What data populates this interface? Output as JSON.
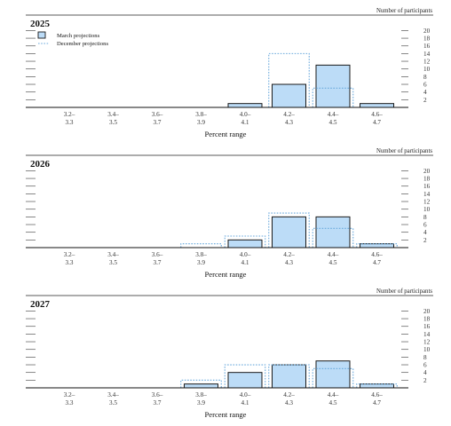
{
  "chart_data": [
    {
      "type": "bar",
      "title": "2025",
      "unit_label": "Number of participants",
      "xlabel": "Percent range",
      "categories": [
        [
          "3.2–",
          "3.3"
        ],
        [
          "3.4–",
          "3.5"
        ],
        [
          "3.6–",
          "3.7"
        ],
        [
          "3.8–",
          "3.9"
        ],
        [
          "4.0–",
          "4.1"
        ],
        [
          "4.2–",
          "4.3"
        ],
        [
          "4.4–",
          "4.5"
        ],
        [
          "4.6–",
          "4.7"
        ]
      ],
      "yticks": [
        2,
        4,
        6,
        8,
        10,
        12,
        14,
        16,
        18,
        20
      ],
      "ylim": [
        0,
        20
      ],
      "series": [
        {
          "name": "March projections",
          "style": "solid-bar",
          "values": [
            0,
            0,
            0,
            0,
            1,
            6,
            11,
            1
          ]
        },
        {
          "name": "December projections",
          "style": "dotted-outline",
          "values": [
            0,
            0,
            0,
            0,
            0,
            14,
            5,
            0
          ]
        }
      ],
      "legend": "top-left",
      "colors": {
        "bar_fill": "#bcdcf7",
        "bar_edge": "#1a1a1a",
        "dotted": "#6aa9dc"
      }
    },
    {
      "type": "bar",
      "title": "2026",
      "unit_label": "Number of participants",
      "xlabel": "Percent range",
      "categories": [
        [
          "3.2–",
          "3.3"
        ],
        [
          "3.4–",
          "3.5"
        ],
        [
          "3.6–",
          "3.7"
        ],
        [
          "3.8–",
          "3.9"
        ],
        [
          "4.0–",
          "4.1"
        ],
        [
          "4.2–",
          "4.3"
        ],
        [
          "4.4–",
          "4.5"
        ],
        [
          "4.6–",
          "4.7"
        ]
      ],
      "yticks": [
        2,
        4,
        6,
        8,
        10,
        12,
        14,
        16,
        18,
        20
      ],
      "ylim": [
        0,
        20
      ],
      "series": [
        {
          "name": "March projections",
          "style": "solid-bar",
          "values": [
            0,
            0,
            0,
            0,
            2,
            8,
            8,
            1
          ]
        },
        {
          "name": "December projections",
          "style": "dotted-outline",
          "values": [
            0,
            0,
            0,
            1,
            3,
            9,
            5,
            1
          ]
        }
      ],
      "colors": {
        "bar_fill": "#bcdcf7",
        "bar_edge": "#1a1a1a",
        "dotted": "#6aa9dc"
      }
    },
    {
      "type": "bar",
      "title": "2027",
      "unit_label": "Number of participants",
      "xlabel": "Percent range",
      "categories": [
        [
          "3.2–",
          "3.3"
        ],
        [
          "3.4–",
          "3.5"
        ],
        [
          "3.6–",
          "3.7"
        ],
        [
          "3.8–",
          "3.9"
        ],
        [
          "4.0–",
          "4.1"
        ],
        [
          "4.2–",
          "4.3"
        ],
        [
          "4.4–",
          "4.5"
        ],
        [
          "4.6–",
          "4.7"
        ]
      ],
      "yticks": [
        2,
        4,
        6,
        8,
        10,
        12,
        14,
        16,
        18,
        20
      ],
      "ylim": [
        0,
        20
      ],
      "series": [
        {
          "name": "March projections",
          "style": "solid-bar",
          "values": [
            0,
            0,
            0,
            1,
            4,
            6,
            7,
            1
          ]
        },
        {
          "name": "December projections",
          "style": "dotted-outline",
          "values": [
            0,
            0,
            0,
            2,
            6,
            6,
            5,
            1
          ]
        }
      ],
      "colors": {
        "bar_fill": "#bcdcf7",
        "bar_edge": "#1a1a1a",
        "dotted": "#6aa9dc"
      }
    }
  ]
}
